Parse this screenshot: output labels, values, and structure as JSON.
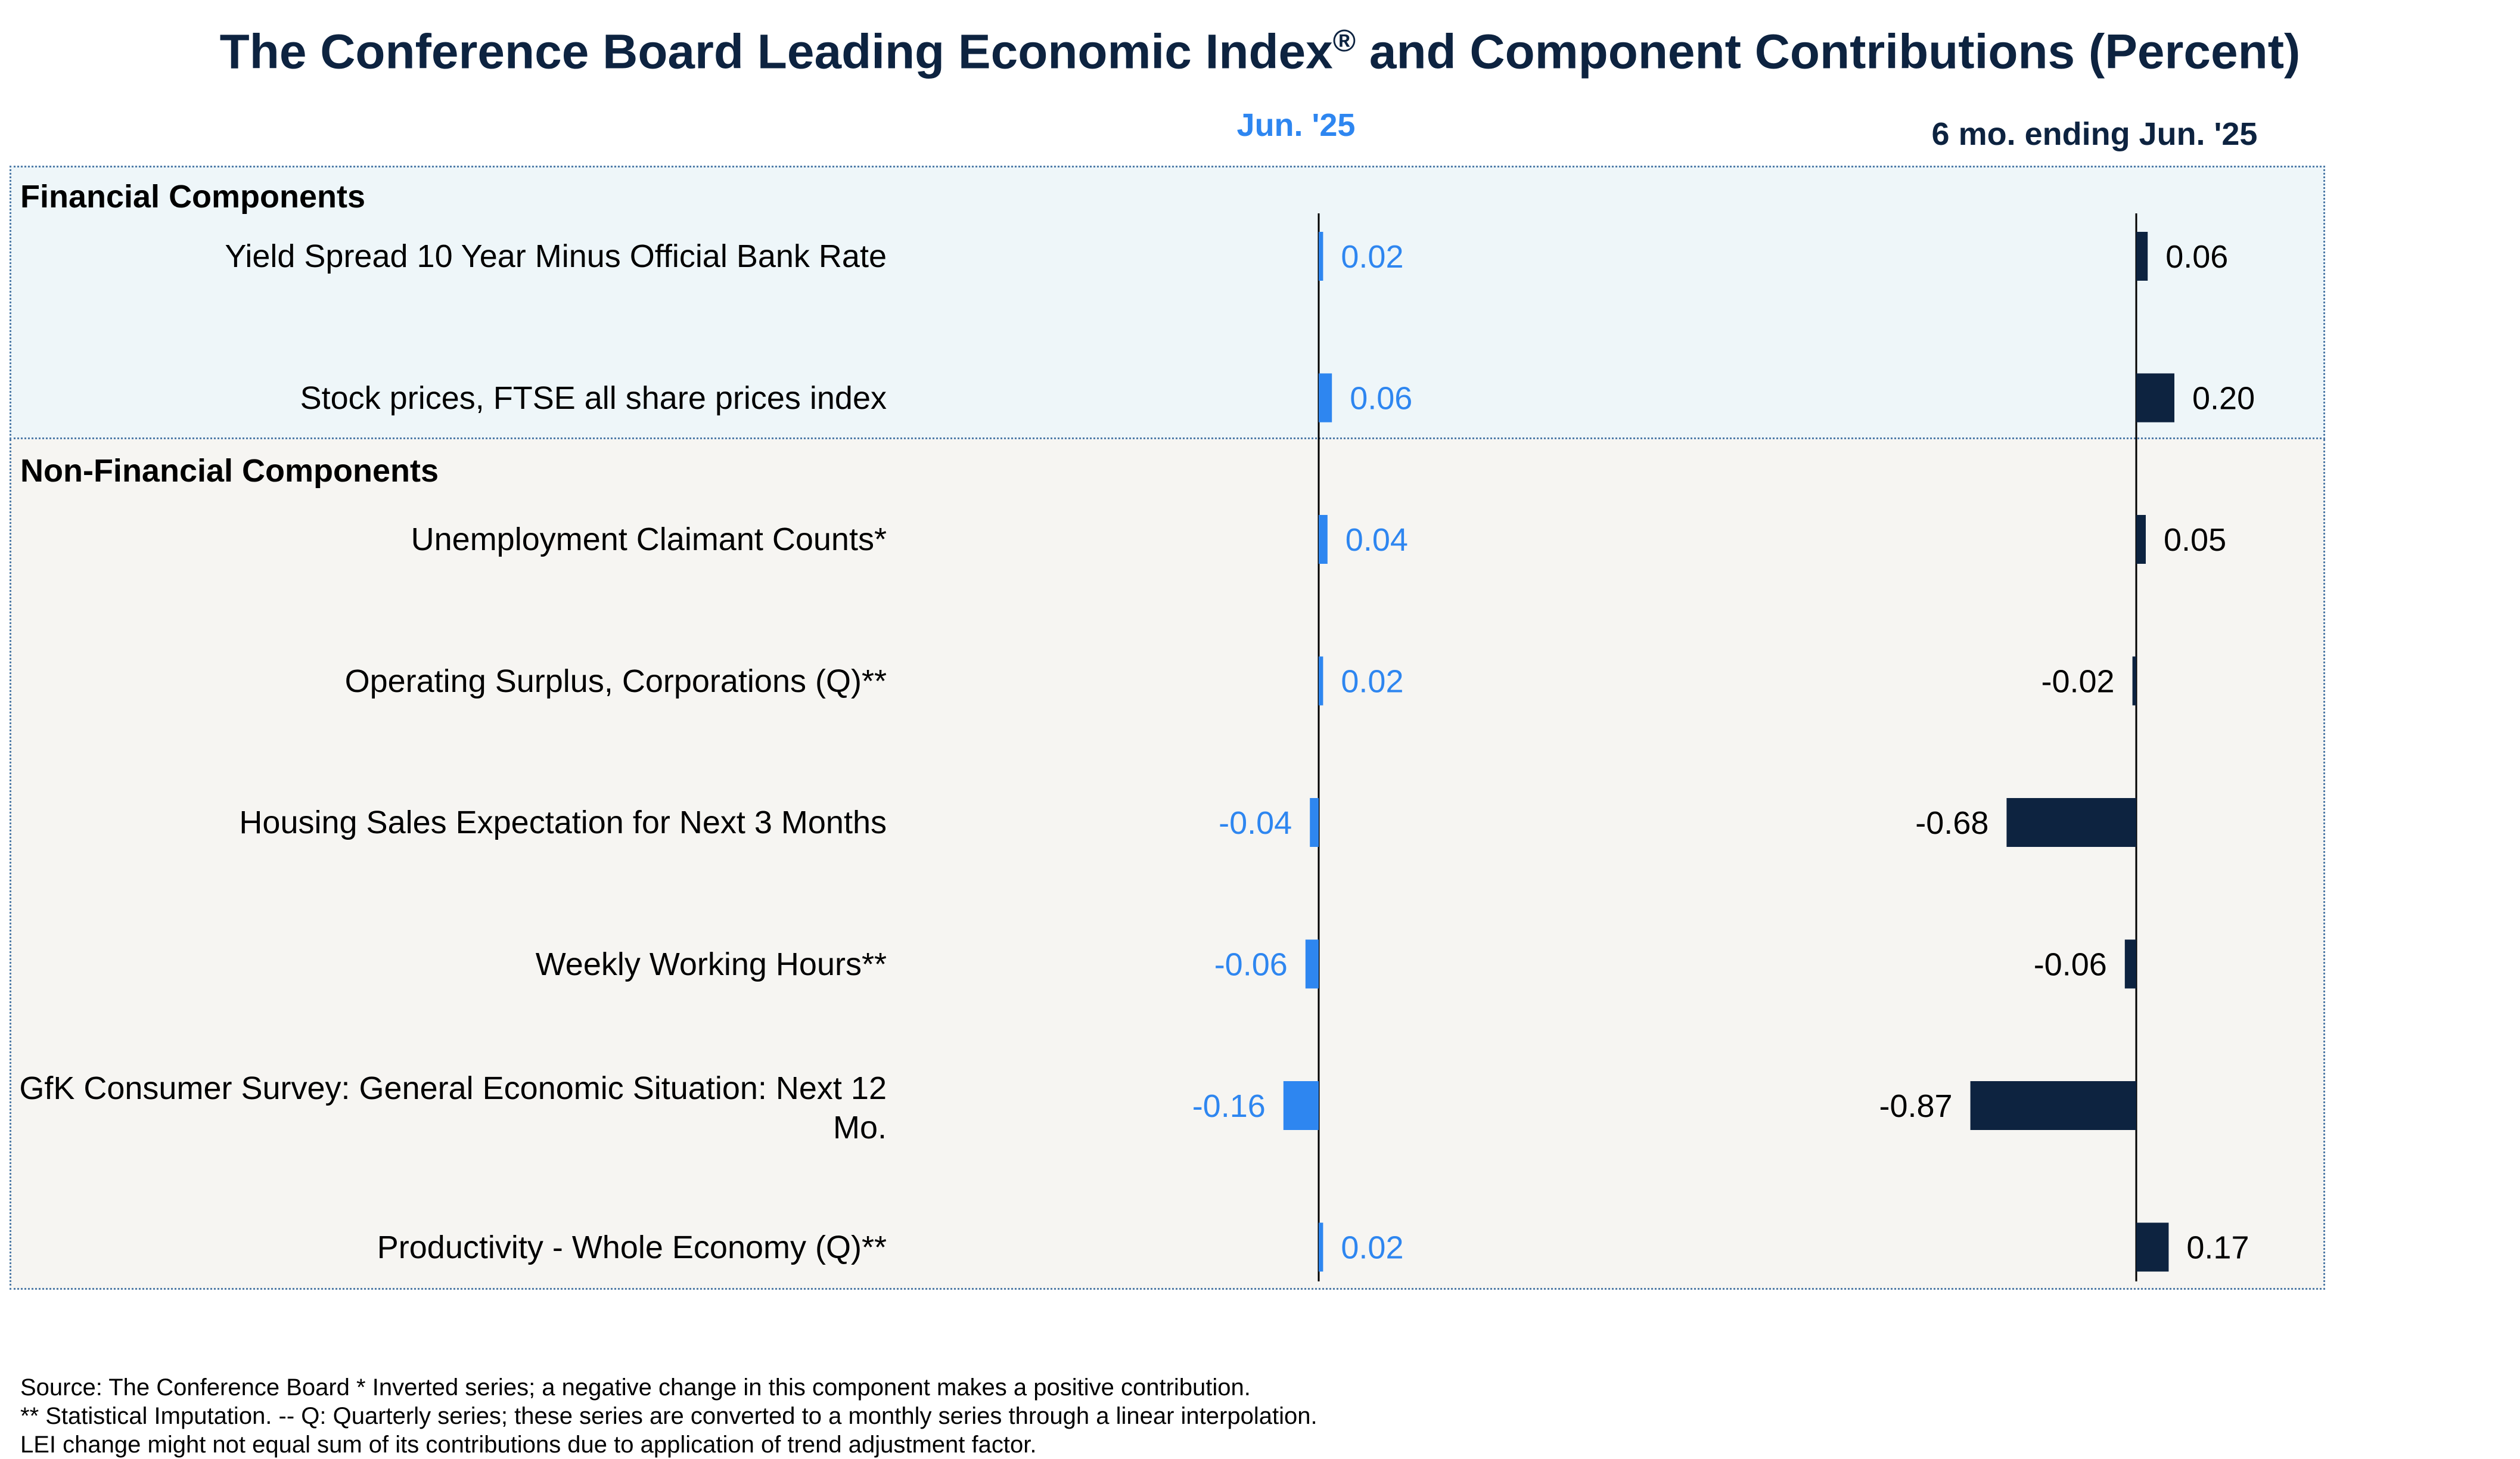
{
  "title": "The Conference Board Leading Economic Index",
  "title_mark": "®",
  "title_suffix": " and Component Contributions (Percent)",
  "colors": {
    "title": "#0d2340",
    "series_month": "#2e86f0",
    "series_six_month": "#0d2340",
    "financial_bg": "#eef6f9",
    "nonfinancial_bg": "#f6f5f2",
    "border": "#4f7ba8"
  },
  "chart_data": {
    "type": "bar",
    "orientation": "horizontal",
    "sections": [
      {
        "name": "Financial Components",
        "rows": [
          0,
          1
        ]
      },
      {
        "name": "Non-Financial Components",
        "rows": [
          2,
          3,
          4,
          5,
          6,
          7
        ]
      }
    ],
    "categories": [
      "Yield Spread 10 Year Minus Official Bank Rate",
      "Stock prices, FTSE all share prices index",
      "Unemployment Claimant Counts*",
      "Operating Surplus, Corporations (Q)**",
      "Housing Sales Expectation for Next 3 Months",
      "Weekly Working Hours**",
      "GfK Consumer Survey: General Economic Situation: Next 12 Mo.",
      "Productivity - Whole Economy (Q)**"
    ],
    "series": [
      {
        "name": "Jun. '25",
        "values": [
          0.02,
          0.06,
          0.04,
          0.02,
          -0.04,
          -0.06,
          -0.16,
          0.02
        ],
        "labels": [
          "0.02",
          "0.06",
          "0.04",
          "0.02",
          "-0.04",
          "-0.06",
          "-0.16",
          "0.02"
        ]
      },
      {
        "name": "6 mo. ending Jun. '25",
        "values": [
          0.06,
          0.2,
          0.05,
          -0.02,
          -0.68,
          -0.06,
          -0.87,
          0.17
        ],
        "labels": [
          "0.06",
          "0.20",
          "0.05",
          "-0.02",
          "-0.68",
          "-0.06",
          "-0.87",
          "0.17"
        ]
      }
    ]
  },
  "footnotes": [
    "Source: The Conference Board *  Inverted series; a negative change in this component makes a positive contribution.",
    "**  Statistical Imputation. -- Q: Quarterly series; these series are converted to a monthly series through a linear interpolation.",
    "LEI change might not equal sum of its contributions due to application of trend adjustment factor."
  ]
}
